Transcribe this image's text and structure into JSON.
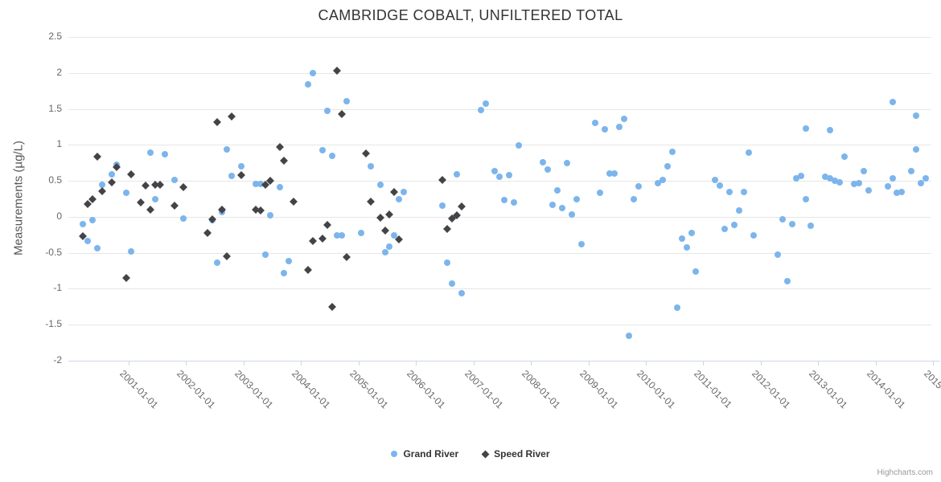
{
  "title": "CAMBRIDGE COBALT, UNFILTERED TOTAL",
  "credits": "Highcharts.com",
  "y_axis": {
    "title": "Measurements (µg/L)",
    "labels": [
      "2.5",
      "2",
      "1.5",
      "1",
      "0.5",
      "0",
      "-0.5",
      "-1",
      "-1.5",
      "-2"
    ],
    "max": 2.5,
    "min": -2,
    "step": 0.5
  },
  "x_axis": {
    "labels": [
      "2001-01-01",
      "2002-01-01",
      "2003-01-01",
      "2004-01-01",
      "2005-01-01",
      "2006-01-01",
      "2007-01-01",
      "2008-01-01",
      "2009-01-01",
      "2010-01-01",
      "2011-01-01",
      "2012-01-01",
      "2013-01-01",
      "2014-01-01",
      "2015-01-01"
    ],
    "tick_years": [
      2001,
      2002,
      2003,
      2004,
      2005,
      2006,
      2007,
      2008,
      2009,
      2010,
      2011,
      2012,
      2013,
      2014,
      2015
    ],
    "range_start_year": 1999.95,
    "range_end_year": 2014.97
  },
  "legend": [
    {
      "label": "Grand River",
      "marker": "circle",
      "color": "#7cb5ec"
    },
    {
      "label": "Speed River",
      "marker": "diamond",
      "color": "#434348"
    }
  ],
  "chart_data": {
    "type": "scatter",
    "title": "CAMBRIDGE COBALT, UNFILTERED TOTAL",
    "xlabel": "",
    "ylabel": "Measurements (µg/L)",
    "ylim": [
      -2,
      2.5
    ],
    "x_range": [
      "2000-01",
      "2015-01"
    ],
    "grid": "horizontal",
    "legend_position": "bottom-center",
    "series": [
      {
        "name": "Grand River",
        "marker": "circle",
        "color": "#7cb5ec",
        "points": [
          [
            "2000-03",
            -0.1
          ],
          [
            "2000-04",
            -0.34
          ],
          [
            "2000-05",
            -0.05
          ],
          [
            "2000-06",
            -0.44
          ],
          [
            "2000-07",
            0.44
          ],
          [
            "2000-09",
            0.59
          ],
          [
            "2000-10",
            0.73
          ],
          [
            "2000-12",
            0.33
          ],
          [
            "2001-01",
            -0.48
          ],
          [
            "2001-05",
            0.89
          ],
          [
            "2001-06",
            0.24
          ],
          [
            "2001-08",
            0.87
          ],
          [
            "2001-10",
            0.51
          ],
          [
            "2001-12",
            -0.02
          ],
          [
            "2002-06",
            -0.05
          ],
          [
            "2002-07",
            -0.64
          ],
          [
            "2002-08",
            0.07
          ],
          [
            "2002-09",
            0.94
          ],
          [
            "2002-10",
            0.57
          ],
          [
            "2002-12",
            0.7
          ],
          [
            "2003-03",
            0.46
          ],
          [
            "2003-04",
            0.46
          ],
          [
            "2003-05",
            -0.53
          ],
          [
            "2003-06",
            0.02
          ],
          [
            "2003-08",
            0.41
          ],
          [
            "2003-09",
            -0.78
          ],
          [
            "2003-10",
            -0.62
          ],
          [
            "2004-02",
            1.84
          ],
          [
            "2004-03",
            2.0
          ],
          [
            "2004-05",
            0.92
          ],
          [
            "2004-06",
            1.47
          ],
          [
            "2004-07",
            0.85
          ],
          [
            "2004-08",
            -0.26
          ],
          [
            "2004-09",
            -0.26
          ],
          [
            "2004-10",
            1.61
          ],
          [
            "2005-01",
            -0.22
          ],
          [
            "2005-03",
            0.7
          ],
          [
            "2005-05",
            0.45
          ],
          [
            "2005-06",
            -0.49
          ],
          [
            "2005-07",
            -0.41
          ],
          [
            "2005-08",
            -0.26
          ],
          [
            "2005-09",
            0.25
          ],
          [
            "2005-10",
            0.34
          ],
          [
            "2006-06",
            0.16
          ],
          [
            "2006-07",
            -0.64
          ],
          [
            "2006-08",
            -0.93
          ],
          [
            "2006-09",
            0.59
          ],
          [
            "2006-10",
            -1.06
          ],
          [
            "2007-02",
            1.48
          ],
          [
            "2007-03",
            1.57
          ],
          [
            "2007-05",
            0.63
          ],
          [
            "2007-06",
            0.56
          ],
          [
            "2007-07",
            0.23
          ],
          [
            "2007-08",
            0.58
          ],
          [
            "2007-09",
            0.2
          ],
          [
            "2007-10",
            0.99
          ],
          [
            "2008-03",
            0.76
          ],
          [
            "2008-04",
            0.66
          ],
          [
            "2008-05",
            0.17
          ],
          [
            "2008-06",
            0.37
          ],
          [
            "2008-07",
            0.12
          ],
          [
            "2008-08",
            0.75
          ],
          [
            "2008-09",
            0.03
          ],
          [
            "2008-10",
            0.24
          ],
          [
            "2008-11",
            -0.38
          ],
          [
            "2009-02",
            1.31
          ],
          [
            "2009-03",
            0.33
          ],
          [
            "2009-04",
            1.22
          ],
          [
            "2009-05",
            0.6
          ],
          [
            "2009-06",
            0.6
          ],
          [
            "2009-07",
            1.25
          ],
          [
            "2009-08",
            1.36
          ],
          [
            "2009-09",
            -1.65
          ],
          [
            "2009-10",
            0.24
          ],
          [
            "2009-11",
            0.42
          ],
          [
            "2010-03",
            0.47
          ],
          [
            "2010-04",
            0.51
          ],
          [
            "2010-05",
            0.7
          ],
          [
            "2010-06",
            0.9
          ],
          [
            "2010-07",
            -1.26
          ],
          [
            "2010-08",
            -0.3
          ],
          [
            "2010-09",
            -0.43
          ],
          [
            "2010-10",
            -0.23
          ],
          [
            "2010-11",
            -0.76
          ],
          [
            "2011-03",
            0.51
          ],
          [
            "2011-04",
            0.43
          ],
          [
            "2011-05",
            -0.17
          ],
          [
            "2011-06",
            0.34
          ],
          [
            "2011-07",
            -0.11
          ],
          [
            "2011-08",
            0.09
          ],
          [
            "2011-09",
            0.35
          ],
          [
            "2011-10",
            0.89
          ],
          [
            "2011-11",
            -0.26
          ],
          [
            "2012-04",
            -0.53
          ],
          [
            "2012-05",
            -0.03
          ],
          [
            "2012-06",
            -0.89
          ],
          [
            "2012-07",
            -0.1
          ],
          [
            "2012-08",
            0.53
          ],
          [
            "2012-09",
            0.57
          ],
          [
            "2012-10",
            0.25
          ],
          [
            "2012-10",
            1.23
          ],
          [
            "2012-11",
            -0.12
          ],
          [
            "2013-02",
            0.56
          ],
          [
            "2013-03",
            0.54
          ],
          [
            "2013-03",
            1.2
          ],
          [
            "2013-04",
            0.5
          ],
          [
            "2013-05",
            0.48
          ],
          [
            "2013-06",
            0.84
          ],
          [
            "2013-08",
            0.46
          ],
          [
            "2013-09",
            0.47
          ],
          [
            "2013-10",
            0.64
          ],
          [
            "2013-11",
            0.37
          ],
          [
            "2014-03",
            0.42
          ],
          [
            "2014-04",
            0.54
          ],
          [
            "2014-04",
            1.6
          ],
          [
            "2014-05",
            0.33
          ],
          [
            "2014-06",
            0.34
          ],
          [
            "2014-08",
            0.63
          ],
          [
            "2014-09",
            1.41
          ],
          [
            "2014-09",
            0.94
          ],
          [
            "2014-10",
            0.47
          ],
          [
            "2014-11",
            0.54
          ]
        ]
      },
      {
        "name": "Speed River",
        "marker": "diamond",
        "color": "#434348",
        "points": [
          [
            "2000-03",
            -0.27
          ],
          [
            "2000-04",
            0.18
          ],
          [
            "2000-05",
            0.25
          ],
          [
            "2000-06",
            0.84
          ],
          [
            "2000-07",
            0.36
          ],
          [
            "2000-09",
            0.48
          ],
          [
            "2000-10",
            0.69
          ],
          [
            "2000-12",
            -0.85
          ],
          [
            "2001-01",
            0.59
          ],
          [
            "2001-03",
            0.2
          ],
          [
            "2001-04",
            0.43
          ],
          [
            "2001-05",
            0.1
          ],
          [
            "2001-06",
            0.44
          ],
          [
            "2001-07",
            0.45
          ],
          [
            "2001-10",
            0.16
          ],
          [
            "2001-12",
            0.41
          ],
          [
            "2002-05",
            -0.22
          ],
          [
            "2002-06",
            -0.03
          ],
          [
            "2002-07",
            1.32
          ],
          [
            "2002-08",
            0.1
          ],
          [
            "2002-09",
            -0.55
          ],
          [
            "2002-10",
            1.39
          ],
          [
            "2002-12",
            0.58
          ],
          [
            "2003-03",
            0.1
          ],
          [
            "2003-04",
            0.09
          ],
          [
            "2003-05",
            0.44
          ],
          [
            "2003-06",
            0.5
          ],
          [
            "2003-08",
            0.97
          ],
          [
            "2003-09",
            0.78
          ],
          [
            "2003-11",
            0.21
          ],
          [
            "2004-02",
            -0.74
          ],
          [
            "2004-03",
            -0.34
          ],
          [
            "2004-05",
            -0.3
          ],
          [
            "2004-06",
            -0.11
          ],
          [
            "2004-07",
            -1.25
          ],
          [
            "2004-08",
            2.03
          ],
          [
            "2004-09",
            1.43
          ],
          [
            "2004-10",
            -0.56
          ],
          [
            "2005-02",
            0.88
          ],
          [
            "2005-03",
            0.21
          ],
          [
            "2005-05",
            -0.01
          ],
          [
            "2005-06",
            -0.19
          ],
          [
            "2005-07",
            0.03
          ],
          [
            "2005-08",
            0.34
          ],
          [
            "2005-09",
            -0.31
          ],
          [
            "2006-06",
            0.51
          ],
          [
            "2006-07",
            -0.17
          ],
          [
            "2006-08",
            -0.02
          ],
          [
            "2006-09",
            0.02
          ],
          [
            "2006-10",
            0.14
          ]
        ]
      }
    ]
  }
}
